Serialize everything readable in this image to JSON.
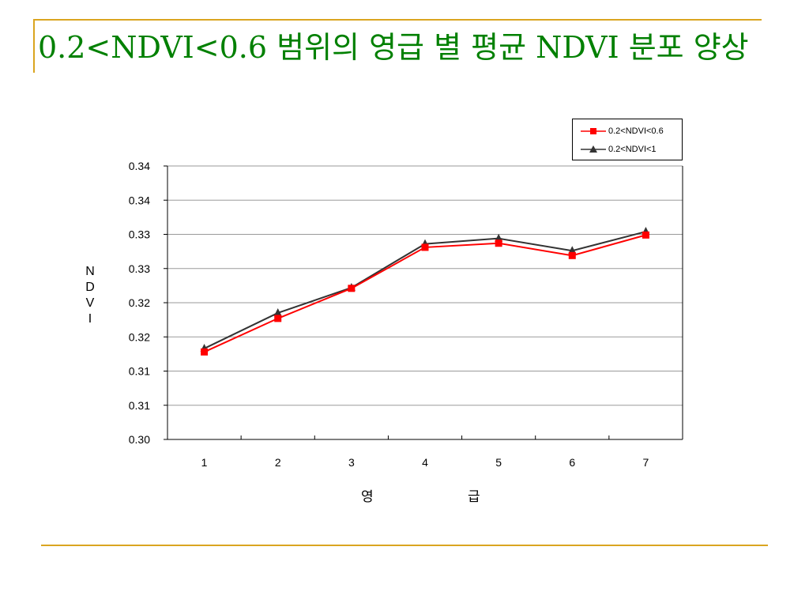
{
  "slide": {
    "title": "0.2<NDVI<0.6 범위의 영급 별 평균 NDVI 분포 양상",
    "accent_color": "#DAA520",
    "title_color": "#008000"
  },
  "chart_data": {
    "type": "line",
    "title": "",
    "xlabel": "영 급",
    "xlabel_parts": [
      "영",
      "급"
    ],
    "ylabel": "NDVI",
    "ylabel_chars": [
      "N",
      "D",
      "V",
      "I"
    ],
    "categories": [
      "1",
      "2",
      "3",
      "4",
      "5",
      "6",
      "7"
    ],
    "ylim": [
      0.3,
      0.34
    ],
    "y_ticks": [
      0.3,
      0.305,
      0.31,
      0.315,
      0.32,
      0.325,
      0.33,
      0.335,
      0.34
    ],
    "y_tick_labels": [
      "0.30",
      "0.31",
      "0.31",
      "0.32",
      "0.32",
      "0.33",
      "0.33",
      "0.34",
      "0.34"
    ],
    "grid": true,
    "legend_position": "top-right",
    "series": [
      {
        "name": "0.2<NDVI<0.6",
        "color": "#FF0000",
        "marker": "square",
        "values": [
          0.3128,
          0.3177,
          0.3221,
          0.3281,
          0.3287,
          0.3269,
          0.3299
        ]
      },
      {
        "name": "0.2<NDVI<1",
        "color": "#333333",
        "marker": "triangle",
        "values": [
          0.3133,
          0.3185,
          0.3222,
          0.3286,
          0.3294,
          0.3276,
          0.3304
        ]
      }
    ]
  }
}
